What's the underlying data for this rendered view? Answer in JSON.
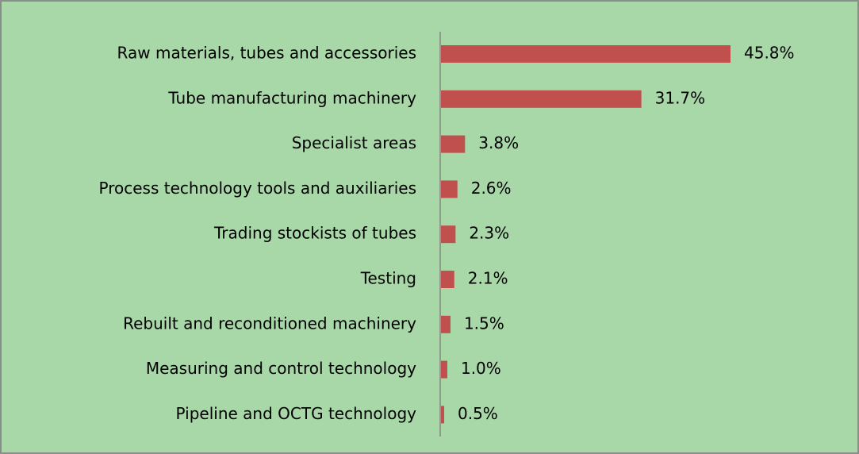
{
  "chart_data": {
    "type": "bar",
    "orientation": "horizontal",
    "categories": [
      "Raw materials, tubes and accessories",
      "Tube manufacturing machinery",
      "Specialist areas",
      "Process technology tools and auxiliaries",
      "Trading stockists of tubes",
      "Testing",
      "Rebuilt and reconditioned machinery",
      "Measuring and control technology",
      "Pipeline and OCTG technology"
    ],
    "values": [
      45.8,
      31.7,
      3.8,
      2.6,
      2.3,
      2.1,
      1.5,
      1.0,
      0.5
    ],
    "value_labels": [
      "45.8%",
      "31.7%",
      "3.8%",
      "2.6%",
      "2.3%",
      "2.1%",
      "1.5%",
      "1.0%",
      "0.5%"
    ],
    "color": "#c0504d",
    "background": "#a8d7a8"
  }
}
